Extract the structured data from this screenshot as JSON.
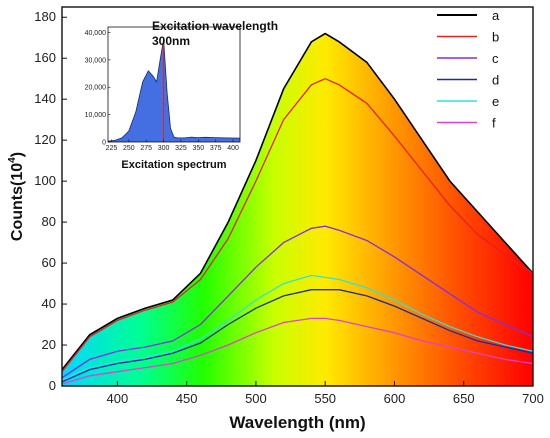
{
  "chart_data": {
    "type": "line",
    "xlabel": "Wavelength (nm)",
    "ylabel_main": "Counts(10",
    "ylabel_exp": "4",
    "ylabel_close": ")",
    "xlim": [
      360,
      700
    ],
    "ylim": [
      0,
      185
    ],
    "xticks": [
      400,
      450,
      500,
      550,
      600,
      650,
      700
    ],
    "yticks": [
      0,
      20,
      40,
      60,
      80,
      100,
      120,
      140,
      160,
      180
    ],
    "legend_position": "top-right",
    "background_gradient": [
      {
        "offset": 0,
        "color": "#00d8ff"
      },
      {
        "offset": 0.17,
        "color": "#00ff90"
      },
      {
        "offset": 0.3,
        "color": "#22ff00"
      },
      {
        "offset": 0.45,
        "color": "#c8ff00"
      },
      {
        "offset": 0.56,
        "color": "#ffea00"
      },
      {
        "offset": 0.7,
        "color": "#ff9a00"
      },
      {
        "offset": 0.85,
        "color": "#ff4a00"
      },
      {
        "offset": 1,
        "color": "#ff0000"
      }
    ],
    "x": [
      360,
      380,
      400,
      420,
      440,
      460,
      480,
      500,
      520,
      540,
      550,
      560,
      580,
      600,
      620,
      640,
      660,
      680,
      700
    ],
    "series": [
      {
        "name": "a",
        "color": "#000000",
        "values": [
          8,
          25,
          33,
          38,
          42,
          55,
          80,
          110,
          145,
          168,
          172,
          168,
          158,
          140,
          120,
          100,
          85,
          70,
          55
        ]
      },
      {
        "name": "b",
        "color": "#e8201e",
        "values": [
          7,
          24,
          32,
          37,
          41,
          52,
          72,
          100,
          130,
          147,
          150,
          147,
          138,
          122,
          105,
          88,
          74,
          64,
          55
        ]
      },
      {
        "name": "c",
        "color": "#8a2be2",
        "values": [
          4,
          13,
          17,
          19,
          22,
          30,
          44,
          58,
          70,
          77,
          78,
          76,
          71,
          63,
          54,
          45,
          36,
          30,
          24
        ]
      },
      {
        "name": "d",
        "color": "#1f2a9c",
        "values": [
          2,
          8,
          11,
          13,
          16,
          21,
          30,
          38,
          44,
          47,
          47,
          47,
          44,
          39,
          33,
          27,
          22,
          19,
          16
        ]
      },
      {
        "name": "e",
        "color": "#33e0d8",
        "values": [
          3,
          9,
          12,
          14,
          17,
          23,
          32,
          42,
          50,
          54,
          53,
          52,
          48,
          42,
          35,
          29,
          24,
          20,
          17
        ]
      },
      {
        "name": "f",
        "color": "#e040d0",
        "values": [
          1,
          5,
          7,
          9,
          11,
          15,
          20,
          26,
          31,
          33,
          33,
          32,
          29,
          26,
          22,
          19,
          16,
          13,
          11
        ]
      }
    ],
    "inset": {
      "title": "Excitation wavelength",
      "subtitle": "300nm",
      "xlabel": "Excitation spectrum",
      "xlim": [
        220,
        410
      ],
      "ylim": [
        0,
        42000
      ],
      "xticks": [
        225,
        250,
        275,
        300,
        325,
        350,
        375,
        400
      ],
      "yticks": [
        0,
        10000,
        20000,
        30000,
        40000
      ],
      "ytick_labels": [
        "0",
        "10,000",
        "20,000",
        "30,000",
        "40,000"
      ],
      "marker_x": 300,
      "x": [
        220,
        230,
        240,
        250,
        260,
        270,
        278,
        285,
        290,
        295,
        300,
        305,
        310,
        315,
        320,
        330,
        340,
        350,
        360,
        375,
        390,
        410
      ],
      "values": [
        300,
        600,
        1500,
        4000,
        11000,
        22000,
        26000,
        24000,
        22000,
        30000,
        37500,
        18000,
        5000,
        1800,
        1500,
        1500,
        1800,
        1600,
        1700,
        1600,
        1500,
        1400
      ],
      "fill_color": "#2f5fe0",
      "line_color": "#1a2a6a"
    }
  }
}
